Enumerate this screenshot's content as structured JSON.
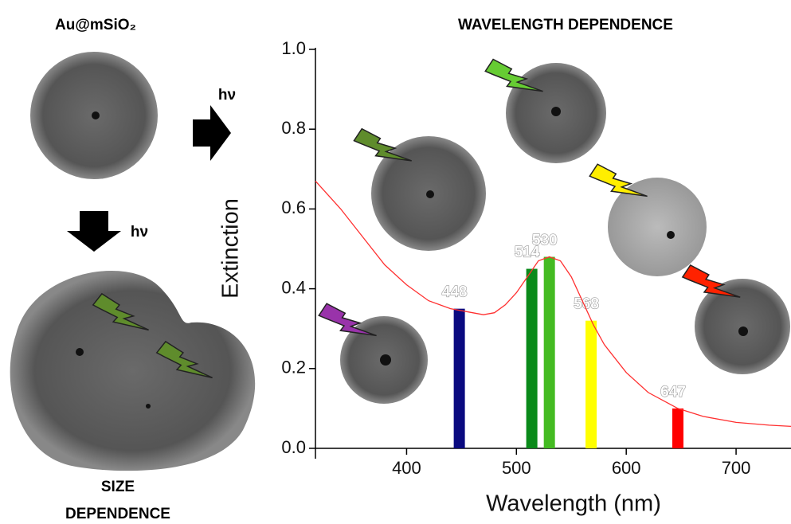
{
  "sample_label": "Au@mSiO₂",
  "hv_right": "hν",
  "hv_down": "hν",
  "size_dependence": [
    "SIZE",
    "DEPENDENCE"
  ],
  "chart_data": {
    "type": "line",
    "title": "WAVELENGTH DEPENDENCE",
    "x_label": "Wavelength (nm)",
    "y_label": "Extinction",
    "x": [
      317,
      340,
      360,
      380,
      400,
      420,
      440,
      460,
      470,
      480,
      490,
      500,
      510,
      520,
      530,
      540,
      550,
      560,
      570,
      580,
      600,
      620,
      647,
      670,
      700,
      730,
      750
    ],
    "values": [
      0.67,
      0.6,
      0.53,
      0.46,
      0.41,
      0.37,
      0.35,
      0.34,
      0.335,
      0.34,
      0.36,
      0.39,
      0.43,
      0.47,
      0.48,
      0.47,
      0.43,
      0.37,
      0.31,
      0.26,
      0.19,
      0.14,
      0.1,
      0.08,
      0.065,
      0.058,
      0.055
    ],
    "color": "#ff3030",
    "bars": {
      "x": [
        448,
        514,
        530,
        568,
        647
      ],
      "values": [
        0.35,
        0.45,
        0.48,
        0.32,
        0.1
      ],
      "colors": [
        "#0a0a80",
        "#0a8a1a",
        "#44bb22",
        "#ffff00",
        "#ff0000"
      ],
      "labels": [
        "448",
        "514",
        "530",
        "568",
        "647"
      ]
    },
    "xlim": [
      317,
      750
    ],
    "ylim": [
      0,
      1
    ],
    "xticks": [
      400,
      500,
      600,
      700
    ],
    "yticks": [
      {
        "value": 0,
        "label": "0.0"
      },
      {
        "value": 0.2,
        "label": "0.2"
      },
      {
        "value": 0.4,
        "label": "0.4"
      },
      {
        "value": 0.6,
        "label": "0.6"
      },
      {
        "value": 0.8,
        "label": "0.8"
      },
      {
        "value": 1,
        "label": "1.0"
      }
    ]
  }
}
